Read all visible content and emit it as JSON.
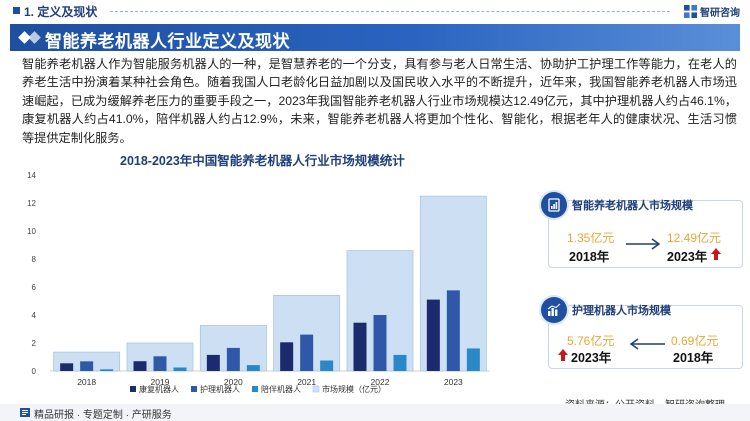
{
  "section": {
    "label": "1. 定义及现状"
  },
  "brand": {
    "name": "智研咨询"
  },
  "banner": {
    "title": "智能养老机器人行业定义及现状"
  },
  "paragraph": "智能养老机器人作为智能服务机器人的一种，是智慧养老的一个分支，具有参与老人日常生活、协助护工护理工作等能力，在老人的养老生活中扮演着某种社会角色。随着我国人口老龄化日益加剧以及国民收入水平的不断提升，近年来，我国智能养老机器人市场迅速崛起，已成为缓解养老压力的重要手段之一，2023年我国智能养老机器人行业市场规模达12.49亿元，其中护理机器人约占46.1%，康复机器人约占41.0%，陪伴机器人约占12.9%，未来，智能养老机器人将更加个性化、智能化，根据老年人的健康状况、生活习惯等提供定制化服务。",
  "chart_data": {
    "type": "bar",
    "title": "2018-2023年中国智能养老机器人行业市场规模统计",
    "categories": [
      "2018",
      "2019",
      "2020",
      "2021",
      "2022",
      "2023"
    ],
    "ylim": [
      0,
      14
    ],
    "yticks": [
      "0",
      "2",
      "4",
      "6",
      "8",
      "10",
      "12",
      "14"
    ],
    "grid": false,
    "legend_position": "bottom",
    "series": [
      {
        "name": "康复机器人",
        "color": "#1c2b6e",
        "values": [
          0.55,
          0.7,
          1.15,
          2.05,
          3.45,
          5.1
        ]
      },
      {
        "name": "护理机器人",
        "color": "#2f58a8",
        "values": [
          0.69,
          1.05,
          1.65,
          2.6,
          4.0,
          5.76
        ]
      },
      {
        "name": "陪伴机器人",
        "color": "#2a88c8",
        "values": [
          0.12,
          0.25,
          0.42,
          0.75,
          1.15,
          1.61
        ]
      },
      {
        "name": "市场规模（亿元）",
        "color": "#cde0f3",
        "values": [
          1.35,
          2.0,
          3.25,
          5.4,
          8.6,
          12.49
        ]
      }
    ]
  },
  "source": "资料来源：公开资料、智研咨询整理",
  "panel1": {
    "title": "智能养老机器人市场规模",
    "from_value": "1.35亿元",
    "from_year": "2018年",
    "to_value": "12.49亿元",
    "to_year": "2023年"
  },
  "panel2": {
    "title": "护理机器人市场规模",
    "left_value": "5.76亿元",
    "left_year": "2023年",
    "right_value": "0.69亿元",
    "right_year": "2018年"
  },
  "footer": {
    "text": "精品研报 · 专题定制 · 产研服务"
  },
  "colors": {
    "accent": "#1e4fa0",
    "value": "#e8a735",
    "up_arrow": "#c8161d"
  }
}
